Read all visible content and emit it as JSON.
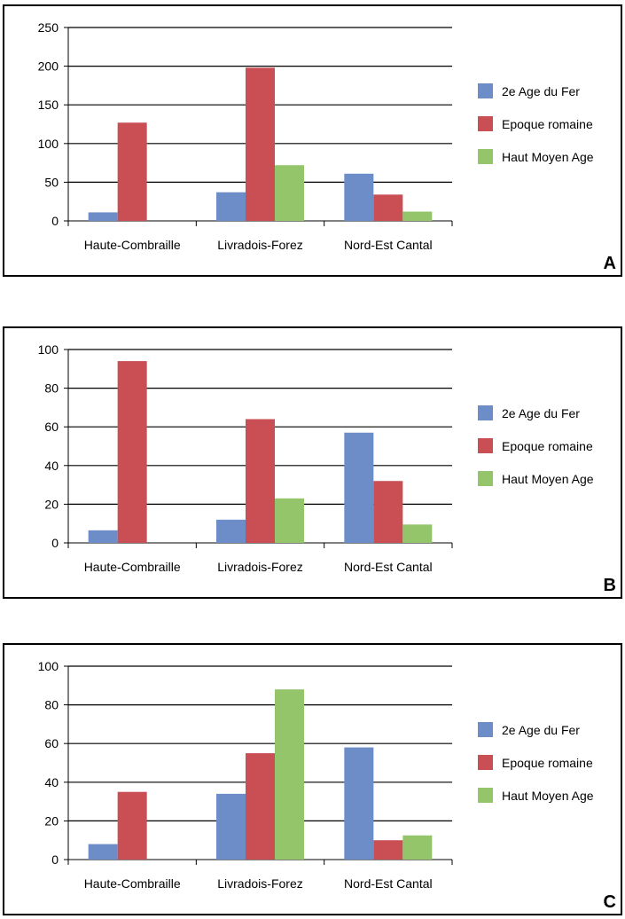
{
  "chart_data": [
    {
      "type": "bar",
      "panel_label": "A",
      "categories": [
        "Haute-Combraille",
        "Livradois-Forez",
        "Nord-Est Cantal"
      ],
      "yticks": [
        0,
        50,
        100,
        150,
        200,
        250
      ],
      "ylim": [
        0,
        250
      ],
      "grid": true,
      "legend_position": "right",
      "series": [
        {
          "name": "2e Age du Fer",
          "color": "#6d8dc9",
          "values": [
            11,
            37,
            61
          ]
        },
        {
          "name": "Epoque romaine",
          "color": "#c94f55",
          "values": [
            127,
            198,
            34
          ]
        },
        {
          "name": "Haut Moyen Age",
          "color": "#94c56b",
          "values": [
            0,
            72,
            12
          ]
        }
      ]
    },
    {
      "type": "bar",
      "panel_label": "B",
      "categories": [
        "Haute-Combraille",
        "Livradois-Forez",
        "Nord-Est Cantal"
      ],
      "yticks": [
        0,
        20,
        40,
        60,
        80,
        100
      ],
      "ylim": [
        0,
        100
      ],
      "grid": true,
      "legend_position": "right",
      "series": [
        {
          "name": "2e Age du Fer",
          "color": "#6d8dc9",
          "values": [
            6.5,
            12,
            57
          ]
        },
        {
          "name": "Epoque romaine",
          "color": "#c94f55",
          "values": [
            94,
            64,
            32
          ]
        },
        {
          "name": "Haut Moyen Age",
          "color": "#94c56b",
          "values": [
            0,
            23,
            9.5
          ]
        }
      ]
    },
    {
      "type": "bar",
      "panel_label": "C",
      "categories": [
        "Haute-Combraille",
        "Livradois-Forez",
        "Nord-Est Cantal"
      ],
      "yticks": [
        0,
        20,
        40,
        60,
        80,
        100
      ],
      "ylim": [
        0,
        100
      ],
      "grid": true,
      "legend_position": "right",
      "series": [
        {
          "name": "2e Age du Fer",
          "color": "#6d8dc9",
          "values": [
            8,
            34,
            58
          ]
        },
        {
          "name": "Epoque romaine",
          "color": "#c94f55",
          "values": [
            35,
            55,
            10
          ]
        },
        {
          "name": "Haut Moyen Age",
          "color": "#94c56b",
          "values": [
            0,
            88,
            12.5
          ]
        }
      ]
    }
  ]
}
